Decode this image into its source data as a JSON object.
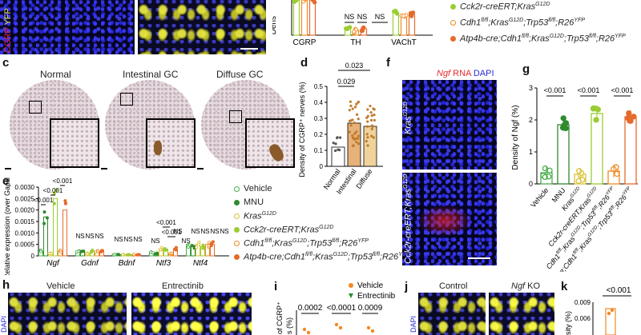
{
  "panel_labels": {
    "c": "c",
    "d": "d",
    "e": "e",
    "f": "f",
    "g": "g",
    "h": "h",
    "i": "i",
    "j": "j",
    "k": "k"
  },
  "colors": {
    "vehicle": "#4cae4c",
    "mnu": "#2e8b2e",
    "kras": "#d8c235",
    "cck2r": "#9acd32",
    "cdh1": "#f08a24",
    "atp4b": "#e56b2b",
    "cgrp_red": "#e8282b",
    "dapi_blue": "#2b2bd9",
    "ngf_red": "#e8282b"
  },
  "panel_top": {
    "cgrp_label": "CGRP",
    "yfp_label": "YFP",
    "axis_label_partial": "Dens",
    "groups": [
      "CGRP",
      "TH",
      "VAChT"
    ],
    "ns": [
      "NS",
      "NS",
      "NS"
    ],
    "legend": [
      {
        "text": "Cck2r-creERT;Kras",
        "sup": "G12D",
        "color_key": "cck2r",
        "open": false
      },
      {
        "text": "Cdh1",
        "sup": "fl/fl",
        "text2": ";Kras",
        "sup2": "G12D",
        "text3": ";Trp53",
        "sup3": "fl/fl",
        "text4": ";R26",
        "sup4": "YFP",
        "color_key": "cdh1",
        "open": true
      },
      {
        "text": "Atp4b-cre;Cdh1",
        "sup": "fl/fl",
        "text2": ";Kras",
        "sup2": "G12D",
        "text3": ";Trp53",
        "sup3": "fl/fl",
        "text4": ";R26",
        "sup4": "YFP",
        "color_key": "atp4b",
        "open": false
      }
    ]
  },
  "panel_c": {
    "titles": [
      "Normal",
      "Intestinal GC",
      "Diffuse GC"
    ]
  },
  "panel_d": {
    "ylabel": "Density of CGRP⁺ nerves (%)",
    "brackets": [
      "0.023",
      "0.029"
    ],
    "chart_data": {
      "type": "bar",
      "categories": [
        "Normal",
        "Intestinal",
        "Diffuse"
      ],
      "values": [
        0.12,
        0.27,
        0.25
      ],
      "ylim": [
        0,
        0.5
      ],
      "yticks": [
        "0",
        "0.1",
        "0.2",
        "0.3",
        "0.4",
        "0.5"
      ]
    }
  },
  "panel_e": {
    "ylabel": "Relative expression (over Gapdh)",
    "yticks": [
      "0",
      "0.0005",
      "0.0010",
      "0.0015",
      "0.0020",
      "0.0025",
      "0.0030"
    ],
    "genes": [
      "Ngf",
      "Gdnf",
      "Bdnf",
      "Ntf3",
      "Ntf4"
    ],
    "pvals": [
      "<0.001",
      "<0.001",
      "<0.001",
      "<0.001",
      "<0.001"
    ],
    "ns": [
      "NS",
      "NS",
      "NS",
      "NS",
      "NS",
      "NS",
      "NS",
      "NS",
      "NS",
      "NS",
      "NS",
      "NS",
      "NS"
    ],
    "legend": [
      {
        "text": "Vehicle",
        "color_key": "vehicle",
        "open": true,
        "italic": false
      },
      {
        "text": "MNU",
        "color_key": "mnu",
        "open": false,
        "italic": false
      },
      {
        "text": "Kras",
        "sup": "G12D",
        "color_key": "kras",
        "open": true,
        "italic": true
      },
      {
        "text": "Cck2r-creERT;Kras",
        "sup": "G12D",
        "color_key": "cck2r",
        "open": false,
        "italic": true
      },
      {
        "text": "Cdh1",
        "sup": "fl/fl",
        "text2": ";Kras",
        "sup2": "G12D",
        "text3": ";Trp53",
        "sup3": "fl/fl",
        "text4": ";R26",
        "sup4": "YFP",
        "color_key": "cdh1",
        "open": true,
        "italic": true
      },
      {
        "text": "Atp4b-cre;Cdh1",
        "sup": "fl/fl",
        "text2": ";Kras",
        "sup2": "G12D",
        "text3": ";Trp53",
        "sup3": "fl/fl",
        "text4": ";R26",
        "sup4": "YFP",
        "color_key": "atp4b",
        "open": false,
        "italic": true
      }
    ]
  },
  "panel_f": {
    "title_ngf": "Ngf",
    "title_rna": " RNA ",
    "title_dapi": "DAPI",
    "label_top": "Kras",
    "label_top_sup": "G12D",
    "label_bottom": "Cck2r-creERT;Kras",
    "label_bottom_sup": "G12D"
  },
  "panel_g": {
    "ylabel": "Density of Ngf (%)",
    "yticks": [
      "0",
      "1",
      "2",
      "3"
    ],
    "pvals": [
      "<0.001",
      "<0.001",
      "<0.001"
    ],
    "chart_data": {
      "type": "bar",
      "categories": [
        "Vehicle",
        "MNU",
        "Kras G12D",
        "Cck2r-creERT;Kras G12D",
        "Cdh1 fl/fl;Kras G12D;Trp53 fl/fl;R26 YFP",
        "Atp4b-cre;Cdh1 fl/fl;Kras G12D;Trp53 fl/fl;R26 YFP"
      ],
      "values": [
        0.35,
        1.85,
        0.3,
        2.2,
        0.4,
        2.1
      ],
      "ylim": [
        0,
        3
      ]
    },
    "xlabels": [
      {
        "text": "Vehicle"
      },
      {
        "text": "MNU"
      },
      {
        "text": "Kras",
        "sup": "G12D"
      },
      {
        "text": "Cck2r-creERT;Kras",
        "sup": "G12D"
      },
      {
        "text": "Cdh1",
        "sup": "fl/fl",
        "text2": ";Kras",
        "sup2": "G12D",
        "text3": ";Trp53",
        "sup3": "fl/fl",
        "text4": ";R26",
        "sup4": "YFP"
      },
      {
        "text": "Atp4b-cre;Cdh1",
        "sup": "fl/fl",
        "text2": ";Kras",
        "sup2": "G12D",
        "text3": ";Trp53",
        "sup3": "fl/fl",
        "text4": ";R26",
        "sup4": "YFP"
      }
    ]
  },
  "panel_h": {
    "titles": [
      "Vehicle",
      "Entrectinib"
    ],
    "side_label": "DAPI"
  },
  "panel_i": {
    "legend": [
      {
        "text": "Vehicle",
        "color_key": "cdh1",
        "shape": "circle"
      },
      {
        "text": "Entrectinib",
        "color_key": "mnu",
        "shape": "triangle"
      }
    ],
    "pvals": [
      "0.0002",
      "<0.0001",
      "0.0009"
    ],
    "ylabel_partial": "of CGRP⁺",
    "ylabel_partial2": "s (%)"
  },
  "panel_j": {
    "titles": [
      "Control",
      "Ngf KO"
    ],
    "title_ko_italic": "Ngf",
    "title_ko_rest": " KO",
    "side_label": "DAPI"
  },
  "panel_k": {
    "pval": "<0.001",
    "yticks": [
      "0.009",
      "0.006"
    ],
    "ylabel_partial": "sity (%)"
  }
}
